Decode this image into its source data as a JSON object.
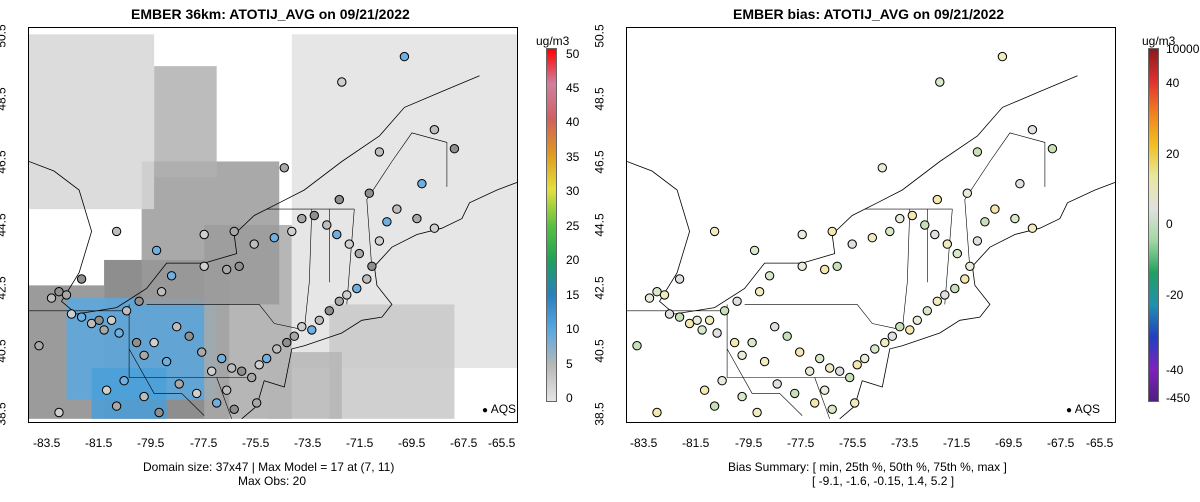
{
  "left_panel": {
    "title": "EMBER 36km: ATOTIJ_AVG on 09/21/2022",
    "y_ticks": [
      "50.5",
      "48.5",
      "46.5",
      "44.5",
      "42.5",
      "40.5",
      "38.5"
    ],
    "x_ticks": [
      "-83.5",
      "-81.5",
      "-79.5",
      "-77.5",
      "-75.5",
      "-73.5",
      "-71.5",
      "-69.5",
      "-67.5",
      "-65.5"
    ],
    "legend_label": "AQS",
    "footer_line1": "Domain size: 37x47 | Max Model = 17 at (7, 11)",
    "footer_line2": "Max Obs: 20",
    "colorbar_unit": "ug/m3",
    "colorbar_labels": [
      "50",
      "45",
      "40",
      "35",
      "30",
      "25",
      "20",
      "15",
      "10",
      "5",
      "0"
    ],
    "colorbar_colors": [
      "#e5e5e5",
      "#b8b8b8",
      "#5aa9e0",
      "#2a7fbf",
      "#1fa05a",
      "#5cc040",
      "#e2e040",
      "#e09a20",
      "#d06060",
      "#d080a0",
      "#ff0000"
    ]
  },
  "right_panel": {
    "title": "EMBER bias: ATOTIJ_AVG on 09/21/2022",
    "y_ticks": [
      "50.5",
      "48.5",
      "46.5",
      "44.5",
      "42.5",
      "40.5",
      "38.5"
    ],
    "x_ticks": [
      "-83.5",
      "-81.5",
      "-79.5",
      "-77.5",
      "-75.5",
      "-73.5",
      "-71.5",
      "-69.5",
      "-67.5",
      "-65.5"
    ],
    "legend_label": "AQS",
    "footer_line1": "Bias Summary: [ min, 25th %, 50th %, 75th %, max ]",
    "footer_line2": "[ -9.1,  -1.6,  -0.15,  1.4,  5.2 ]",
    "colorbar_unit": "ug/m3",
    "colorbar_labels": [
      "10000",
      "40",
      "20",
      "0",
      "-20",
      "-40",
      "-450"
    ],
    "colorbar_colors": [
      "#8b1a1a",
      "#e03030",
      "#f08020",
      "#f0c020",
      "#e8e8a0",
      "#e0e0e0",
      "#a0d8a0",
      "#20a060",
      "#2090b0",
      "#2040c0",
      "#8020c0",
      "#502080"
    ]
  },
  "map_data": {
    "lon_range": [
      -84.5,
      -65.0
    ],
    "lat_range": [
      38.3,
      50.7
    ],
    "stations_left": [
      [
        -83.6,
        42.2
      ],
      [
        -83.3,
        42.4
      ],
      [
        -83.0,
        42.3
      ],
      [
        -82.8,
        41.7
      ],
      [
        -82.4,
        41.6
      ],
      [
        -82.0,
        41.4
      ],
      [
        -81.7,
        41.5
      ],
      [
        -81.5,
        41.2
      ],
      [
        -81.2,
        41.5
      ],
      [
        -80.9,
        41.1
      ],
      [
        -80.6,
        41.8
      ],
      [
        -80.2,
        40.8
      ],
      [
        -79.9,
        40.4
      ],
      [
        -79.5,
        40.8
      ],
      [
        -79.0,
        40.2
      ],
      [
        -78.6,
        41.3
      ],
      [
        -78.1,
        41.0
      ],
      [
        -77.6,
        40.5
      ],
      [
        -77.2,
        39.9
      ],
      [
        -76.8,
        40.3
      ],
      [
        -76.4,
        40.0
      ],
      [
        -76.0,
        39.9
      ],
      [
        -75.6,
        39.7
      ],
      [
        -75.3,
        40.1
      ],
      [
        -75.0,
        40.3
      ],
      [
        -74.6,
        40.6
      ],
      [
        -74.2,
        40.8
      ],
      [
        -73.9,
        41.0
      ],
      [
        -73.6,
        41.3
      ],
      [
        -73.2,
        41.2
      ],
      [
        -72.9,
        41.5
      ],
      [
        -72.5,
        41.8
      ],
      [
        -72.1,
        42.1
      ],
      [
        -71.8,
        42.3
      ],
      [
        -71.4,
        42.5
      ],
      [
        -71.0,
        42.8
      ],
      [
        -70.8,
        43.2
      ],
      [
        -71.3,
        43.6
      ],
      [
        -71.7,
        43.9
      ],
      [
        -72.2,
        44.2
      ],
      [
        -72.6,
        44.5
      ],
      [
        -73.1,
        44.8
      ],
      [
        -73.6,
        44.7
      ],
      [
        -74.0,
        44.3
      ],
      [
        -74.7,
        44.1
      ],
      [
        -75.5,
        43.9
      ],
      [
        -76.1,
        43.2
      ],
      [
        -76.6,
        43.1
      ],
      [
        -77.5,
        43.2
      ],
      [
        -78.8,
        42.9
      ],
      [
        -79.2,
        42.4
      ],
      [
        -80.1,
        42.1
      ],
      [
        -81.0,
        38.8
      ],
      [
        -81.4,
        39.3
      ],
      [
        -80.7,
        39.6
      ],
      [
        -79.9,
        39.1
      ],
      [
        -79.3,
        38.6
      ],
      [
        -78.5,
        39.5
      ],
      [
        -77.8,
        39.2
      ],
      [
        -77.0,
        38.9
      ],
      [
        -76.6,
        39.3
      ],
      [
        -76.3,
        38.7
      ],
      [
        -75.4,
        38.9
      ],
      [
        -70.5,
        44.0
      ],
      [
        -70.2,
        44.6
      ],
      [
        -69.8,
        45.0
      ],
      [
        -70.9,
        45.5
      ],
      [
        -69.0,
        44.7
      ],
      [
        -68.3,
        44.4
      ],
      [
        -68.8,
        45.8
      ],
      [
        -70.5,
        46.8
      ],
      [
        -72.1,
        45.3
      ],
      [
        -74.3,
        46.3
      ],
      [
        -72.0,
        49.0
      ],
      [
        -69.5,
        49.8
      ],
      [
        -68.3,
        47.5
      ],
      [
        -67.5,
        46.9
      ],
      [
        -76.3,
        44.3
      ],
      [
        -77.5,
        44.2
      ],
      [
        -79.4,
        43.7
      ],
      [
        -81.0,
        44.3
      ],
      [
        -82.4,
        42.8
      ],
      [
        -84.1,
        40.7
      ],
      [
        -83.3,
        38.6
      ]
    ],
    "grey_fields": [
      [
        -84.5,
        38.4,
        -81.5,
        42.6,
        "#8a8a8a"
      ],
      [
        -81.5,
        38.4,
        -76.5,
        43.4,
        "#7a7a7a"
      ],
      [
        -83.0,
        39.0,
        -77.0,
        42.2,
        "#5aa9e0"
      ],
      [
        -82.0,
        38.4,
        -79.0,
        40.0,
        "#4a9fd8"
      ],
      [
        -77.5,
        38.4,
        -74.0,
        44.5,
        "#a9a9a9"
      ],
      [
        -80.0,
        42.0,
        -74.5,
        46.5,
        "#9a9a9a"
      ],
      [
        -79.5,
        46.0,
        -77.0,
        49.5,
        "#b0b0b0"
      ],
      [
        -84.5,
        45.0,
        -79.5,
        50.5,
        "#d6d6d6"
      ],
      [
        -74.0,
        40.0,
        -65.0,
        50.5,
        "#e2e2e2"
      ],
      [
        -72.5,
        38.4,
        -67.5,
        42.0,
        "#c8c8c8"
      ],
      [
        -75.0,
        38.4,
        -72.0,
        40.5,
        "#b5b5b5"
      ]
    ]
  }
}
